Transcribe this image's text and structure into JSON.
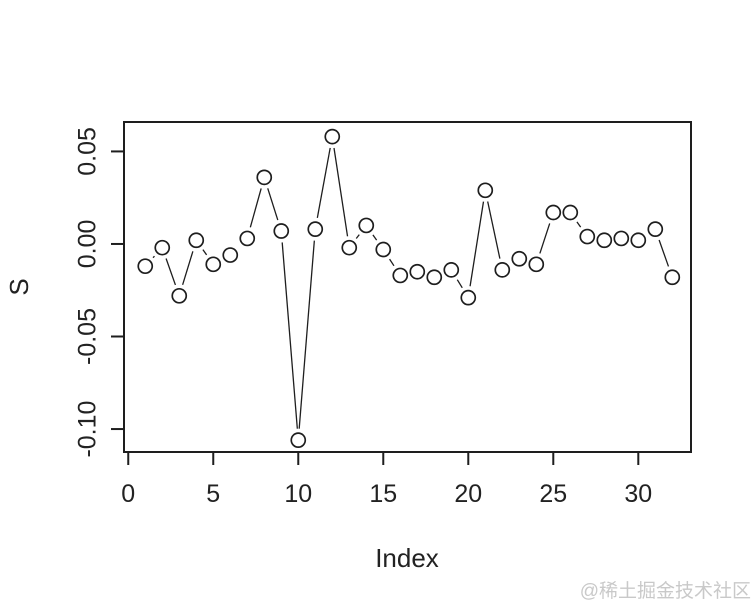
{
  "figure": {
    "watermark": "@稀土掘金技术社区",
    "background_color": "#ffffff",
    "foreground_color": "#1e1e1e",
    "watermark_color": "#c9c9c9"
  },
  "chart_data": {
    "type": "line",
    "subtype": "points-and-lines (R type='b')",
    "marker": "open-circle",
    "title": "",
    "xlabel": "Index",
    "ylabel": "S",
    "grid": false,
    "xlim": [
      -0.25,
      33.1
    ],
    "ylim": [
      -0.1124,
      0.0659
    ],
    "xticks": {
      "values": [
        0,
        5,
        10,
        15,
        20,
        25,
        30
      ],
      "labels": [
        "0",
        "5",
        "10",
        "15",
        "20",
        "25",
        "30"
      ]
    },
    "yticks": {
      "values": [
        0.05,
        0.0,
        -0.05,
        -0.1
      ],
      "labels": [
        "0.05",
        "0.00",
        "-0.05",
        "-0.10"
      ]
    },
    "x": [
      1,
      2,
      3,
      4,
      5,
      6,
      7,
      8,
      9,
      10,
      11,
      12,
      13,
      14,
      15,
      16,
      17,
      18,
      19,
      20,
      21,
      22,
      23,
      24,
      25,
      26,
      27,
      28,
      29,
      30,
      31,
      32
    ],
    "y": [
      -0.012,
      -0.002,
      -0.028,
      0.002,
      -0.011,
      -0.006,
      0.003,
      0.036,
      0.007,
      -0.106,
      0.008,
      0.058,
      -0.002,
      0.01,
      -0.003,
      -0.017,
      -0.015,
      -0.018,
      -0.014,
      -0.029,
      0.029,
      -0.014,
      -0.008,
      -0.011,
      0.017,
      0.017,
      0.004,
      0.002,
      0.003,
      0.002,
      0.008,
      -0.018
    ]
  }
}
